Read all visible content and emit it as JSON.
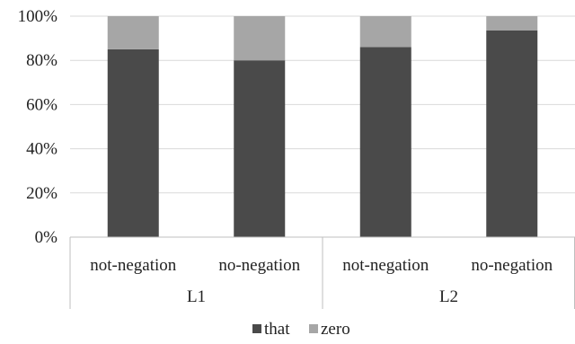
{
  "chart_data": {
    "type": "bar",
    "stacked": true,
    "normalized": true,
    "categories": [
      "not-negation",
      "no-negation",
      "not-negation",
      "no-negation"
    ],
    "groups": [
      {
        "label": "L1",
        "categories": [
          "not-negation",
          "no-negation"
        ]
      },
      {
        "label": "L2",
        "categories": [
          "not-negation",
          "no-negation"
        ]
      }
    ],
    "series": [
      {
        "name": "that",
        "color": "#4a4a4a",
        "values": [
          85,
          80,
          86,
          93.5
        ]
      },
      {
        "name": "zero",
        "color": "#a6a6a6",
        "values": [
          15,
          20,
          14,
          6.5
        ]
      }
    ],
    "ylim": [
      0,
      100
    ],
    "yticks": [
      "0%",
      "20%",
      "40%",
      "60%",
      "80%",
      "100%"
    ],
    "ytick_values": [
      0,
      20,
      40,
      60,
      80,
      100
    ],
    "grid": true,
    "legend_position": "bottom"
  }
}
